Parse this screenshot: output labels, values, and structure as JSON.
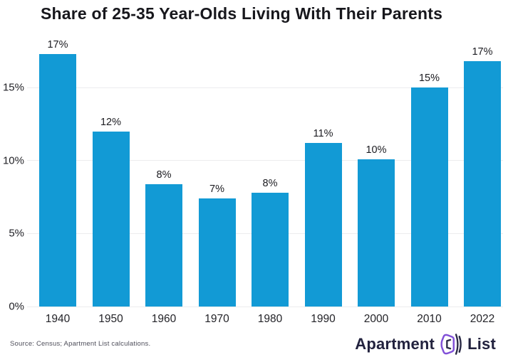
{
  "chart": {
    "title": "Share of 25-35 Year-Olds Living With Their Parents"
  },
  "chart_data": {
    "type": "bar",
    "title": "Share of 25-35 Year-Olds Living With Their Parents",
    "categories": [
      "1940",
      "1950",
      "1960",
      "1970",
      "1980",
      "1990",
      "2000",
      "2010",
      "2022"
    ],
    "values": [
      17.3,
      12.0,
      8.4,
      7.4,
      7.8,
      11.2,
      10.1,
      15.0,
      16.8
    ],
    "bar_labels": [
      "17%",
      "12%",
      "8%",
      "7%",
      "8%",
      "11%",
      "10%",
      "15%",
      "17%"
    ],
    "ytick_labels": [
      "0%",
      "5%",
      "10%",
      "15%"
    ],
    "ytick_values": [
      0,
      5,
      10,
      15
    ],
    "ylim": [
      0,
      18
    ],
    "xlabel": "",
    "ylabel": "",
    "grid": "horizontal",
    "legend": "none",
    "bar_color": "#129ad5"
  },
  "footer": {
    "source": "Source: Census; Apartment List calculations.",
    "logo_text_1": "Apartment",
    "logo_text_2": "List"
  },
  "colors": {
    "bar_blue": "#129ad5",
    "title_text": "#17171c",
    "axis_text": "#232328",
    "gridline": "#ececee",
    "source_text": "#4e4e5a",
    "logo_navy": "#22223e",
    "logo_purple": "#8150d8"
  }
}
